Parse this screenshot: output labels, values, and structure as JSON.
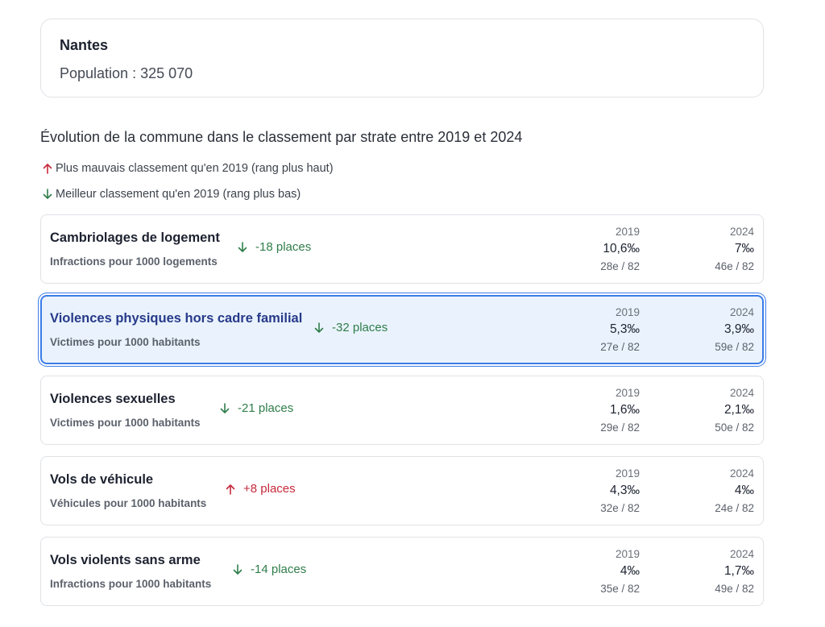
{
  "city": {
    "name": "Nantes",
    "population": "Population : 325 070"
  },
  "section": {
    "title": "Évolution de la commune dans le classement par strate entre 2019 et 2024"
  },
  "legend": {
    "up": "Plus mauvais classement qu'en 2019 (rang plus haut)",
    "down": "Meilleur classement qu'en 2019 (rang plus bas)"
  },
  "colors": {
    "improvement": "#2f7d4a",
    "worsening": "#c6283b",
    "selected_border": "#3b7ce8",
    "selected_bg": "#eaf3fd"
  },
  "rankings": [
    {
      "title": "Cambriolages de logement",
      "subtitle": "Infractions pour 1000 logements",
      "direction": "down",
      "delta": "-18 places",
      "y2019": {
        "year": "2019",
        "value": "10,6‰",
        "rank": "28e / 82"
      },
      "y2024": {
        "year": "2024",
        "value": "7‰",
        "rank": "46e / 82"
      },
      "selected": false
    },
    {
      "title": "Violences physiques hors cadre familial",
      "subtitle": "Victimes pour 1000 habitants",
      "direction": "down",
      "delta": "-32 places",
      "y2019": {
        "year": "2019",
        "value": "5,3‰",
        "rank": "27e / 82"
      },
      "y2024": {
        "year": "2024",
        "value": "3,9‰",
        "rank": "59e / 82"
      },
      "selected": true
    },
    {
      "title": "Violences sexuelles",
      "subtitle": "Victimes pour 1000 habitants",
      "direction": "down",
      "delta": "-21 places",
      "y2019": {
        "year": "2019",
        "value": "1,6‰",
        "rank": "29e / 82"
      },
      "y2024": {
        "year": "2024",
        "value": "2,1‰",
        "rank": "50e / 82"
      },
      "selected": false
    },
    {
      "title": "Vols de véhicule",
      "subtitle": "Véhicules pour 1000 habitants",
      "direction": "up",
      "delta": "+8 places",
      "y2019": {
        "year": "2019",
        "value": "4,3‰",
        "rank": "32e / 82"
      },
      "y2024": {
        "year": "2024",
        "value": "4‰",
        "rank": "24e / 82"
      },
      "selected": false
    },
    {
      "title": "Vols violents sans arme",
      "subtitle": "Infractions pour 1000 habitants",
      "direction": "down",
      "delta": "-14 places",
      "y2019": {
        "year": "2019",
        "value": "4‰",
        "rank": "35e / 82"
      },
      "y2024": {
        "year": "2024",
        "value": "1,7‰",
        "rank": "49e / 82"
      },
      "selected": false
    }
  ]
}
